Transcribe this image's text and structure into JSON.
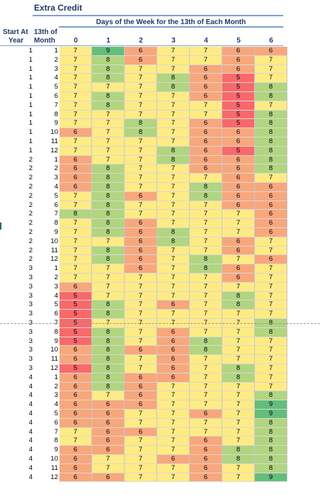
{
  "title": "Extra Credit",
  "subtitle": "Days of the Week for the 13th of Each Month",
  "headers": {
    "col1_line1": "Start At",
    "col1_line2": "Year",
    "col2_line1": "13th of",
    "col2_line2": "Month",
    "days": [
      "0",
      "1",
      "2",
      "3",
      "4",
      "5",
      "6"
    ]
  },
  "colors": {
    "red": "#f8696b",
    "orange": "#f8a77c",
    "yellow": "#ffeb84",
    "green": "#b1d580",
    "darkgreen": "#63be7b",
    "light": "#fce4b6"
  },
  "rows": [
    {
      "year": "1",
      "month": "1",
      "values": [
        "7",
        "9",
        "6",
        "7",
        "7",
        "6",
        "6"
      ]
    },
    {
      "year": "1",
      "month": "2",
      "values": [
        "7",
        "8",
        "6",
        "7",
        "7",
        "6",
        "7"
      ]
    },
    {
      "year": "1",
      "month": "3",
      "values": [
        "7",
        "8",
        "7",
        "7",
        "6",
        "6",
        "7"
      ]
    },
    {
      "year": "1",
      "month": "4",
      "values": [
        "7",
        "8",
        "7",
        "8",
        "6",
        "5",
        "7"
      ]
    },
    {
      "year": "1",
      "month": "5",
      "values": [
        "7",
        "7",
        "7",
        "8",
        "6",
        "5",
        "8"
      ]
    },
    {
      "year": "1",
      "month": "6",
      "values": [
        "7",
        "8",
        "7",
        "7",
        "6",
        "5",
        "8"
      ]
    },
    {
      "year": "1",
      "month": "7",
      "values": [
        "7",
        "8",
        "7",
        "7",
        "7",
        "5",
        "7"
      ]
    },
    {
      "year": "1",
      "month": "8",
      "values": [
        "7",
        "7",
        "7",
        "7",
        "7",
        "5",
        "8"
      ]
    },
    {
      "year": "1",
      "month": "9",
      "values": [
        "7",
        "7",
        "8",
        "7",
        "6",
        "5",
        "8"
      ]
    },
    {
      "year": "1",
      "month": "10",
      "values": [
        "6",
        "7",
        "8",
        "7",
        "6",
        "6",
        "8"
      ]
    },
    {
      "year": "1",
      "month": "11",
      "values": [
        "7",
        "7",
        "7",
        "7",
        "6",
        "6",
        "8"
      ]
    },
    {
      "year": "1",
      "month": "12",
      "values": [
        "7",
        "7",
        "7",
        "8",
        "6",
        "5",
        "8"
      ]
    },
    {
      "year": "2",
      "month": "1",
      "values": [
        "6",
        "7",
        "7",
        "8",
        "6",
        "6",
        "8"
      ]
    },
    {
      "year": "2",
      "month": "2",
      "values": [
        "6",
        "8",
        "7",
        "7",
        "6",
        "6",
        "8"
      ]
    },
    {
      "year": "2",
      "month": "3",
      "values": [
        "6",
        "8",
        "7",
        "7",
        "7",
        "6",
        "7"
      ]
    },
    {
      "year": "2",
      "month": "4",
      "values": [
        "6",
        "8",
        "7",
        "7",
        "8",
        "6",
        "6"
      ]
    },
    {
      "year": "2",
      "month": "5",
      "values": [
        "7",
        "8",
        "6",
        "7",
        "8",
        "6",
        "6"
      ]
    },
    {
      "year": "2",
      "month": "6",
      "values": [
        "7",
        "8",
        "7",
        "7",
        "7",
        "6",
        "6"
      ]
    },
    {
      "year": "2",
      "month": "7",
      "values": [
        "8",
        "8",
        "7",
        "7",
        "7",
        "7",
        "6"
      ]
    },
    {
      "year": "2",
      "month": "8",
      "values": [
        "7",
        "8",
        "6",
        "7",
        "7",
        "7",
        "6"
      ]
    },
    {
      "year": "2",
      "month": "9",
      "values": [
        "7",
        "8",
        "6",
        "8",
        "7",
        "7",
        "6"
      ]
    },
    {
      "year": "2",
      "month": "10",
      "values": [
        "7",
        "7",
        "6",
        "8",
        "7",
        "6",
        "7"
      ]
    },
    {
      "year": "2",
      "month": "11",
      "values": [
        "7",
        "8",
        "6",
        "7",
        "7",
        "6",
        "7"
      ]
    },
    {
      "year": "2",
      "month": "12",
      "values": [
        "7",
        "8",
        "6",
        "7",
        "8",
        "7",
        "6"
      ]
    },
    {
      "year": "3",
      "month": "1",
      "values": [
        "7",
        "7",
        "6",
        "7",
        "8",
        "6",
        "7"
      ]
    },
    {
      "year": "3",
      "month": "2",
      "values": [
        "7",
        "7",
        "7",
        "7",
        "7",
        "6",
        "7"
      ]
    },
    {
      "year": "3",
      "month": "3",
      "values": [
        "6",
        "7",
        "7",
        "7",
        "7",
        "7",
        "7"
      ]
    },
    {
      "year": "3",
      "month": "4",
      "values": [
        "5",
        "7",
        "7",
        "7",
        "7",
        "8",
        "7"
      ]
    },
    {
      "year": "3",
      "month": "5",
      "values": [
        "5",
        "8",
        "7",
        "6",
        "7",
        "8",
        "7"
      ]
    },
    {
      "year": "3",
      "month": "6",
      "values": [
        "5",
        "8",
        "7",
        "7",
        "7",
        "7",
        "7"
      ]
    },
    {
      "year": "3",
      "month": "7",
      "values": [
        "5",
        "7",
        "7",
        "7",
        "7",
        "7",
        "8"
      ]
    },
    {
      "year": "3",
      "month": "8",
      "values": [
        "5",
        "8",
        "7",
        "6",
        "7",
        "7",
        "8"
      ]
    },
    {
      "year": "3",
      "month": "9",
      "values": [
        "5",
        "8",
        "7",
        "6",
        "8",
        "7",
        "7"
      ]
    },
    {
      "year": "3",
      "month": "10",
      "values": [
        "6",
        "8",
        "6",
        "6",
        "8",
        "7",
        "7"
      ]
    },
    {
      "year": "3",
      "month": "11",
      "values": [
        "6",
        "8",
        "7",
        "6",
        "7",
        "7",
        "7"
      ]
    },
    {
      "year": "3",
      "month": "12",
      "values": [
        "5",
        "8",
        "7",
        "6",
        "7",
        "8",
        "7"
      ]
    },
    {
      "year": "4",
      "month": "1",
      "values": [
        "6",
        "8",
        "6",
        "6",
        "7",
        "8",
        "7"
      ]
    },
    {
      "year": "4",
      "month": "2",
      "values": [
        "6",
        "8",
        "6",
        "7",
        "7",
        "7",
        "7"
      ]
    },
    {
      "year": "4",
      "month": "3",
      "values": [
        "6",
        "7",
        "6",
        "7",
        "7",
        "7",
        "8"
      ]
    },
    {
      "year": "4",
      "month": "4",
      "values": [
        "6",
        "6",
        "6",
        "7",
        "7",
        "7",
        "9"
      ]
    },
    {
      "year": "4",
      "month": "5",
      "values": [
        "6",
        "6",
        "7",
        "7",
        "6",
        "7",
        "9"
      ]
    },
    {
      "year": "4",
      "month": "6",
      "values": [
        "6",
        "6",
        "7",
        "7",
        "7",
        "7",
        "8"
      ]
    },
    {
      "year": "4",
      "month": "7",
      "values": [
        "7",
        "6",
        "6",
        "7",
        "7",
        "7",
        "8"
      ]
    },
    {
      "year": "4",
      "month": "8",
      "values": [
        "7",
        "6",
        "7",
        "7",
        "6",
        "7",
        "8"
      ]
    },
    {
      "year": "4",
      "month": "9",
      "values": [
        "6",
        "6",
        "7",
        "7",
        "6",
        "8",
        "8"
      ]
    },
    {
      "year": "4",
      "month": "10",
      "values": [
        "6",
        "7",
        "7",
        "6",
        "6",
        "8",
        "8"
      ]
    },
    {
      "year": "4",
      "month": "11",
      "values": [
        "6",
        "7",
        "7",
        "7",
        "6",
        "7",
        "8"
      ]
    },
    {
      "year": "4",
      "month": "12",
      "values": [
        "6",
        "6",
        "7",
        "7",
        "6",
        "7",
        "9"
      ]
    }
  ]
}
